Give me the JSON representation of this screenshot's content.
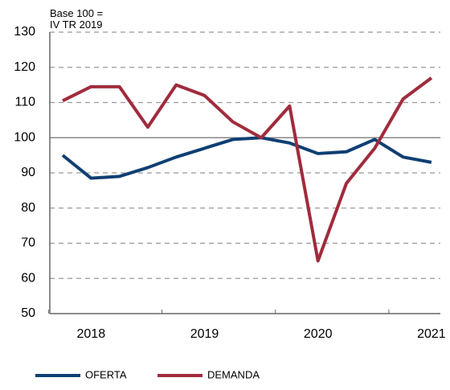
{
  "chart_data": {
    "type": "line",
    "annotation": "Base 100 = IV TR 2019",
    "categories": [
      null,
      "2018",
      null,
      null,
      null,
      "2019",
      null,
      null,
      null,
      "2020",
      null,
      null,
      null,
      "2021"
    ],
    "series": [
      {
        "name": "OFERTA",
        "color": "#0f3f73",
        "values": [
          95,
          88.5,
          89,
          91.5,
          94.5,
          97,
          99.5,
          100,
          98.5,
          95.5,
          96,
          99.5,
          94.5,
          93
        ]
      },
      {
        "name": "DEMANDA",
        "color": "#a02b3c",
        "values": [
          110.5,
          114.5,
          114.5,
          103,
          115,
          112,
          104.5,
          100,
          109,
          65,
          87,
          97,
          111,
          117
        ]
      }
    ],
    "ylim": [
      50,
      130
    ],
    "yticks": [
      50,
      60,
      70,
      80,
      90,
      100,
      110,
      120,
      130
    ],
    "grid": true,
    "legend": "bottom"
  }
}
